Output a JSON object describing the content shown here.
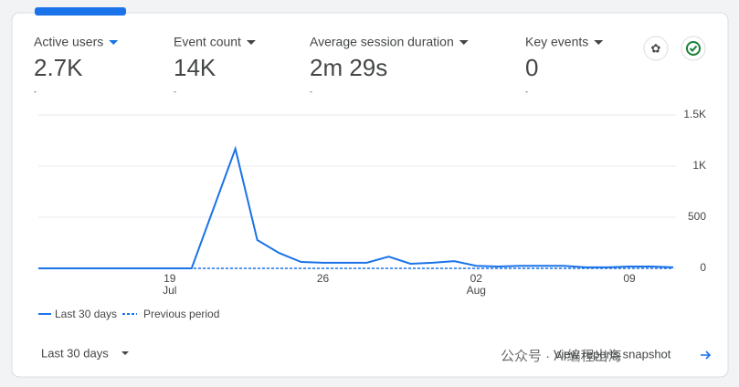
{
  "metrics": [
    {
      "label": "Active users",
      "value": "2.7K",
      "change": "-"
    },
    {
      "label": "Event count",
      "value": "14K",
      "change": "-"
    },
    {
      "label": "Average session duration",
      "value": "2m 29s",
      "change": "-"
    },
    {
      "label": "Key events",
      "value": "0",
      "change": "-"
    }
  ],
  "chart_data": {
    "type": "line",
    "categories": [
      null,
      null,
      null,
      null,
      null,
      null,
      "19",
      null,
      null,
      null,
      null,
      null,
      null,
      "26",
      null,
      null,
      null,
      null,
      null,
      null,
      "02",
      null,
      null,
      null,
      null,
      null,
      null,
      "09",
      null,
      null
    ],
    "category_months": [
      null,
      null,
      null,
      null,
      null,
      null,
      "Jul",
      null,
      null,
      null,
      null,
      null,
      null,
      null,
      null,
      null,
      null,
      null,
      null,
      null,
      "Aug",
      null,
      null,
      null,
      null,
      null,
      null,
      null,
      null,
      null
    ],
    "series": [
      {
        "name": "Last 30 days",
        "color": "#1a73e8",
        "style": "solid",
        "values": [
          0,
          0,
          0,
          0,
          0,
          0,
          0,
          0,
          585,
          1170,
          277,
          150,
          62,
          55,
          55,
          55,
          115,
          45,
          55,
          70,
          25,
          18,
          25,
          25,
          25,
          10,
          10,
          18,
          18,
          10
        ]
      },
      {
        "name": "Previous period",
        "color": "#1a73e8",
        "style": "dashed",
        "values": [
          0,
          0,
          0,
          0,
          0,
          0,
          0,
          0,
          0,
          0,
          0,
          0,
          0,
          0,
          0,
          0,
          0,
          0,
          0,
          0,
          0,
          0,
          0,
          0,
          0,
          0,
          0,
          0,
          0,
          0
        ]
      }
    ],
    "ylim": [
      0,
      1500
    ],
    "yticks": [
      0,
      500,
      {
        "value": 1000,
        "label": "1K"
      },
      {
        "value": 1500,
        "label": "1.5K"
      }
    ],
    "grid": true
  },
  "footer": {
    "range": "Last 30 days",
    "link": "View reports snapshot",
    "watermark": "公众号 · AI编程出海"
  }
}
